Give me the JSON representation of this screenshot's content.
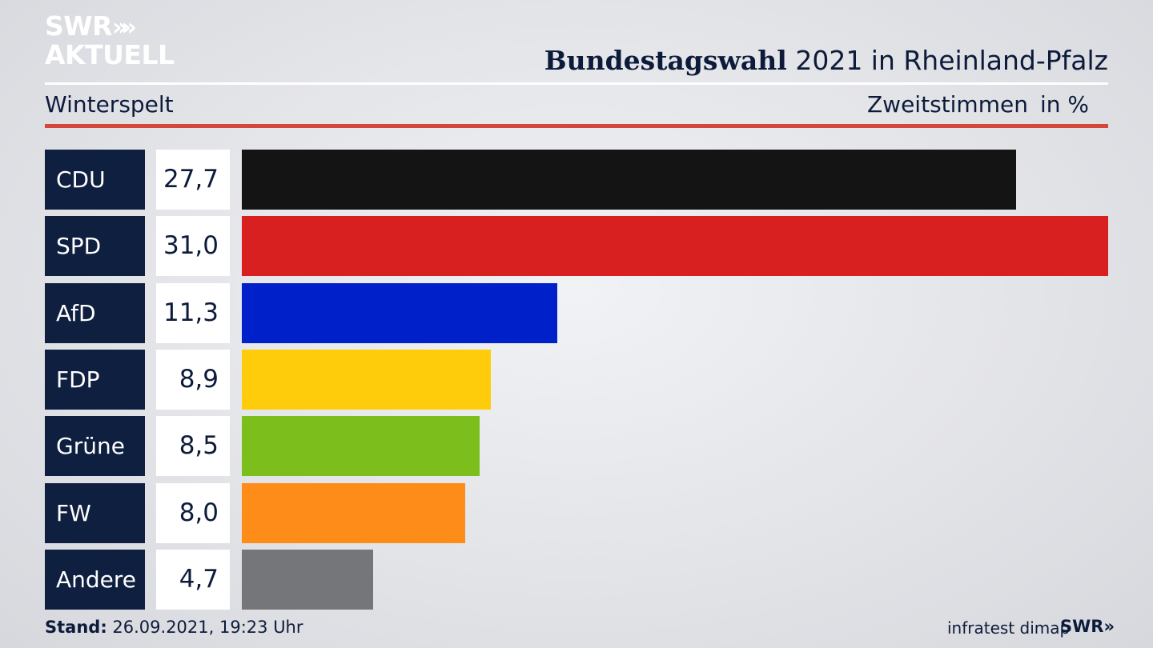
{
  "header": {
    "logo_line1": "SWR",
    "logo_arrows": "»",
    "logo_line2": "AKTUELL",
    "title_bold": "Bundestagswahl",
    "title_rest": "2021 in Rheinland-Pfalz",
    "location": "Winterspelt",
    "metric": "Zweitstimmen",
    "unit": "in %"
  },
  "footer": {
    "stand_label": "Stand:",
    "stand_value": "26.09.2021, 19:23 Uhr",
    "source": "infratest dimap",
    "brand": "SWR»"
  },
  "chart_data": {
    "type": "bar",
    "orientation": "horizontal",
    "categories": [
      "CDU",
      "SPD",
      "AfD",
      "FDP",
      "Grüne",
      "FW",
      "Andere"
    ],
    "values": [
      27.7,
      31.0,
      11.3,
      8.9,
      8.5,
      8.0,
      4.7
    ],
    "value_labels": [
      "27,7",
      "31,0",
      "11,3",
      "8,9",
      "8,5",
      "8,0",
      "4,7"
    ],
    "colors": [
      "#141414",
      "#d82020",
      "#0021c9",
      "#fecc0a",
      "#7cbf1c",
      "#fd8c18",
      "#757679"
    ],
    "xlim": [
      0,
      31.0
    ],
    "grid": false
  }
}
